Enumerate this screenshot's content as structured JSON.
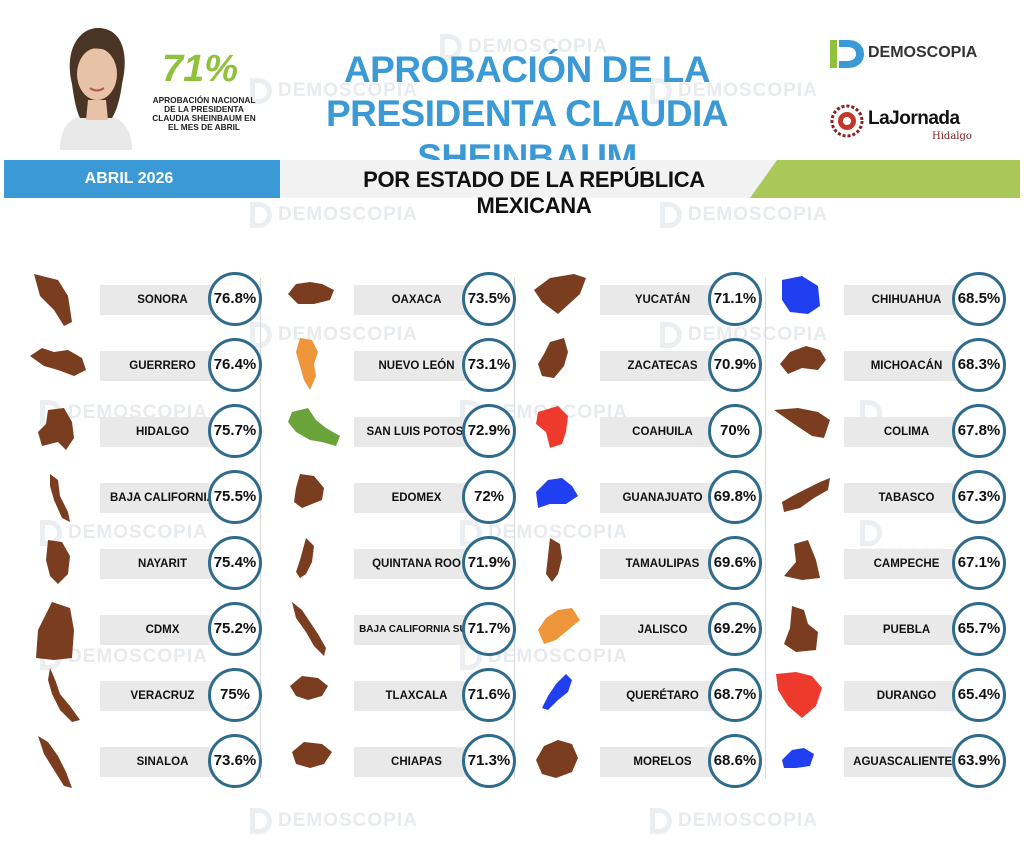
{
  "header": {
    "national_pct": "71%",
    "national_caption": "APROBACIÓN NACIONAL DE LA PRESIDENTA CLAUDIA SHEINBAUM EN EL MES DE ABRIL",
    "title_line1": "APROBACIÓN DE LA",
    "title_line2": "PRESIDENTA CLAUDIA SHEINBAUM",
    "logo_demoscopia": "DEMOSCOPIA",
    "logo_jornada": "LaJornada",
    "logo_jornada_sub": "Hidalgo"
  },
  "band": {
    "date": "ABRIL 2026",
    "subtitle": "POR ESTADO DE LA REPÚBLICA MEXICANA"
  },
  "watermark": "DEMOSCOPIA",
  "colors": {
    "brown": "#7a3d1f",
    "orange": "#f0963a",
    "green": "#6aa33a",
    "red": "#ee3a2d",
    "blue": "#1f3ff0",
    "accent_blue": "#3b9ad6",
    "accent_green": "#aac75a"
  },
  "chart_data": {
    "type": "table",
    "title": "APROBACIÓN DE LA PRESIDENTA CLAUDIA SHEINBAUM",
    "subtitle": "POR ESTADO DE LA REPÚBLICA MEXICANA",
    "unit": "%",
    "columns": [
      [
        {
          "state": "SONORA",
          "value": "76.8%",
          "color": "#7a3d1f"
        },
        {
          "state": "GUERRERO",
          "value": "76.4%",
          "color": "#7a3d1f"
        },
        {
          "state": "HIDALGO",
          "value": "75.7%",
          "color": "#7a3d1f"
        },
        {
          "state": "BAJA CALIFORNIA",
          "value": "75.5%",
          "color": "#7a3d1f"
        },
        {
          "state": "NAYARIT",
          "value": "75.4%",
          "color": "#7a3d1f"
        },
        {
          "state": "CDMX",
          "value": "75.2%",
          "color": "#7a3d1f"
        },
        {
          "state": "VERACRUZ",
          "value": "75%",
          "color": "#7a3d1f"
        },
        {
          "state": "SINALOA",
          "value": "73.6%",
          "color": "#7a3d1f"
        }
      ],
      [
        {
          "state": "OAXACA",
          "value": "73.5%",
          "color": "#7a3d1f"
        },
        {
          "state": "NUEVO LEÓN",
          "value": "73.1%",
          "color": "#f0963a"
        },
        {
          "state": "SAN LUIS POTOSÍ",
          "value": "72.9%",
          "color": "#6aa33a"
        },
        {
          "state": "EDOMEX",
          "value": "72%",
          "color": "#7a3d1f"
        },
        {
          "state": "QUINTANA ROO",
          "value": "71.9%",
          "color": "#7a3d1f"
        },
        {
          "state": "BAJA CALIFORNIA SUR",
          "value": "71.7%",
          "color": "#7a3d1f"
        },
        {
          "state": "TLAXCALA",
          "value": "71.6%",
          "color": "#7a3d1f"
        },
        {
          "state": "CHIAPAS",
          "value": "71.3%",
          "color": "#7a3d1f"
        }
      ],
      [
        {
          "state": "YUCATÁN",
          "value": "71.1%",
          "color": "#7a3d1f"
        },
        {
          "state": "ZACATECAS",
          "value": "70.9%",
          "color": "#7a3d1f"
        },
        {
          "state": "COAHUILA",
          "value": "70%",
          "color": "#ee3a2d"
        },
        {
          "state": "GUANAJUATO",
          "value": "69.8%",
          "color": "#1f3ff0"
        },
        {
          "state": "TAMAULIPAS",
          "value": "69.6%",
          "color": "#7a3d1f"
        },
        {
          "state": "JALISCO",
          "value": "69.2%",
          "color": "#f0963a"
        },
        {
          "state": "QUERÉTARO",
          "value": "68.7%",
          "color": "#1f3ff0"
        },
        {
          "state": "MORELOS",
          "value": "68.6%",
          "color": "#7a3d1f"
        }
      ],
      [
        {
          "state": "CHIHUAHUA",
          "value": "68.5%",
          "color": "#1f3ff0"
        },
        {
          "state": "MICHOACÁN",
          "value": "68.3%",
          "color": "#7a3d1f"
        },
        {
          "state": "COLIMA",
          "value": "67.8%",
          "color": "#7a3d1f"
        },
        {
          "state": "TABASCO",
          "value": "67.3%",
          "color": "#7a3d1f"
        },
        {
          "state": "CAMPECHE",
          "value": "67.1%",
          "color": "#7a3d1f"
        },
        {
          "state": "PUEBLA",
          "value": "65.7%",
          "color": "#7a3d1f"
        },
        {
          "state": "DURANGO",
          "value": "65.4%",
          "color": "#ee3a2d"
        },
        {
          "state": "AGUASCALIENTES",
          "value": "63.9%",
          "color": "#1f3ff0"
        }
      ]
    ]
  }
}
